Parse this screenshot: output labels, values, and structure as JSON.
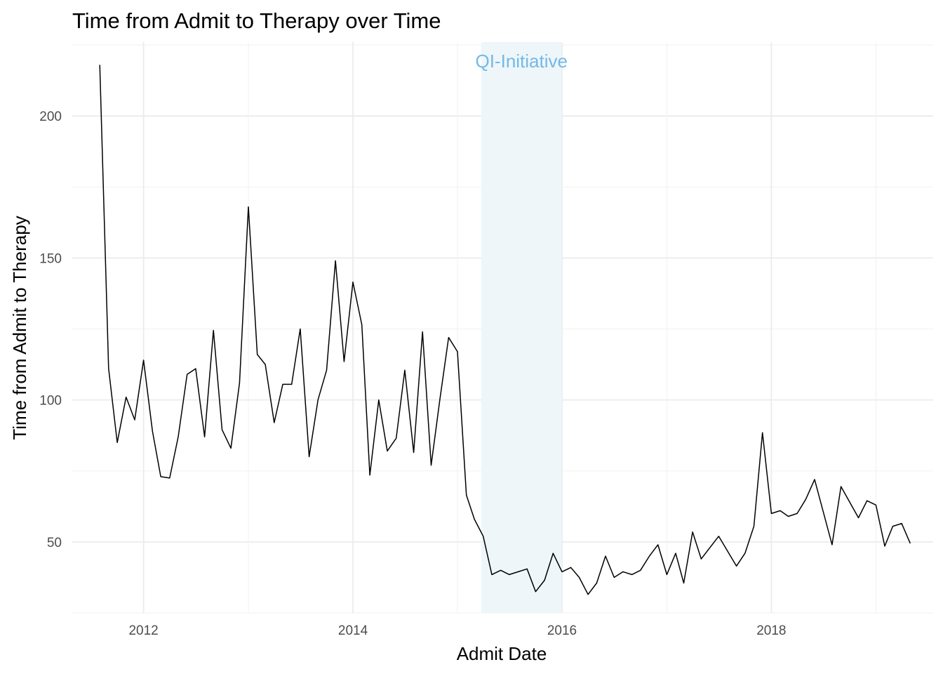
{
  "chart_data": {
    "type": "line",
    "title": "Time from Admit to Therapy over Time",
    "xlabel": "Admit Date",
    "ylabel": "Time from Admit to Therapy",
    "x_ticks": [
      "2012",
      "2014",
      "2016",
      "2018"
    ],
    "y_ticks": [
      50,
      100,
      150,
      200
    ],
    "xlim": [
      "2011-04-27",
      "2019-07-20"
    ],
    "ylim": [
      25,
      226
    ],
    "grid": true,
    "legend": "none",
    "annotation": {
      "label": "QI-Initiative",
      "start": "2015-03-25",
      "end": "2015-12-31",
      "color": "#74b9e4",
      "fill": "#eef6fa"
    },
    "line_color": "#000000",
    "series": [
      {
        "x": [
          "2011-08-01",
          "2011-09-01",
          "2011-10-01",
          "2011-11-01",
          "2011-12-01",
          "2012-01-01",
          "2012-02-01",
          "2012-03-01",
          "2012-04-01",
          "2012-05-01",
          "2012-06-01",
          "2012-07-01",
          "2012-08-01",
          "2012-09-01",
          "2012-10-01",
          "2012-11-01",
          "2012-12-01",
          "2013-01-01",
          "2013-02-01",
          "2013-03-01",
          "2013-04-01",
          "2013-05-01",
          "2013-06-01",
          "2013-07-01",
          "2013-08-01",
          "2013-09-01",
          "2013-10-01",
          "2013-11-01",
          "2013-12-01",
          "2014-01-01",
          "2014-02-01",
          "2014-03-01",
          "2014-04-01",
          "2014-05-01",
          "2014-06-01",
          "2014-07-01",
          "2014-08-01",
          "2014-09-01",
          "2014-10-01",
          "2014-11-01",
          "2014-12-01",
          "2015-01-01",
          "2015-02-01",
          "2015-03-01",
          "2015-04-01",
          "2015-05-01",
          "2015-06-01",
          "2015-07-01",
          "2015-08-01",
          "2015-09-01",
          "2015-10-01",
          "2015-11-01",
          "2015-12-01",
          "2016-01-01",
          "2016-02-01",
          "2016-03-01",
          "2016-04-01",
          "2016-05-01",
          "2016-06-01",
          "2016-07-01",
          "2016-08-01",
          "2016-09-01",
          "2016-10-01",
          "2016-11-01",
          "2016-12-01",
          "2017-01-01",
          "2017-02-01",
          "2017-03-01",
          "2017-04-01",
          "2017-05-01",
          "2017-07-01",
          "2017-09-01",
          "2017-10-01",
          "2017-11-01",
          "2017-12-01",
          "2018-01-01",
          "2018-02-01",
          "2018-03-01",
          "2018-04-01",
          "2018-05-01",
          "2018-06-01",
          "2018-08-01",
          "2018-09-01",
          "2018-11-01",
          "2018-12-01",
          "2019-01-01",
          "2019-02-01",
          "2019-03-01",
          "2019-04-01",
          "2019-05-01"
        ],
        "values": [
          218,
          111,
          85,
          101,
          93,
          114,
          89,
          73,
          72.5,
          87,
          109,
          111,
          87,
          124.5,
          89.5,
          83,
          106,
          168,
          116,
          112.5,
          92,
          105.5,
          105.5,
          125,
          80,
          100,
          110.5,
          149,
          113.5,
          141.5,
          126.5,
          73.5,
          100,
          82,
          86.5,
          110.5,
          81.5,
          124,
          77,
          100.5,
          122,
          117,
          66.5,
          58,
          52,
          38.5,
          40,
          38.5,
          39.5,
          40.5,
          32.5,
          36.5,
          46,
          39.5,
          41,
          37.5,
          31.5,
          35.5,
          45,
          37.5,
          39.5,
          38.5,
          40,
          45,
          49,
          38.5,
          46,
          35.5,
          53.5,
          44,
          52,
          41.5,
          46,
          55.5,
          88.5,
          60,
          61,
          59,
          60,
          65,
          72,
          49,
          69.5,
          58.5,
          64.5,
          63,
          48.5,
          55.5,
          56.5,
          49.5
        ]
      }
    ]
  }
}
